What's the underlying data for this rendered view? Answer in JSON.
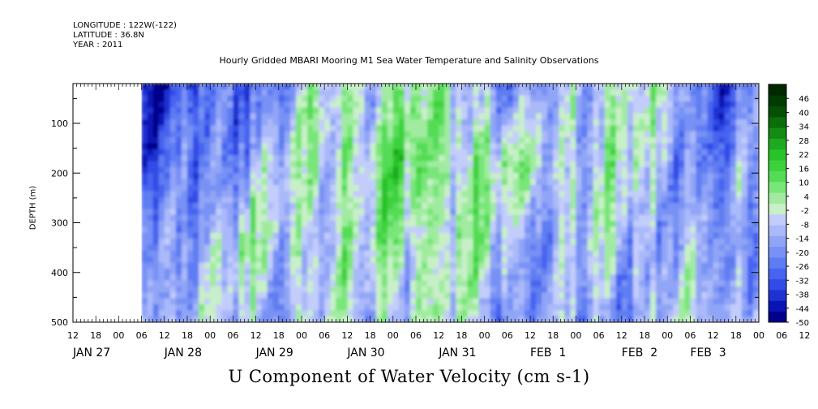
{
  "header": {
    "longitude": "LONGITUDE : 122W(-122)",
    "latitude": "LATITUDE : 36.8N",
    "year": "YEAR : 2011"
  },
  "chart_data": {
    "type": "heatmap",
    "title": "Hourly Gridded MBARI Mooring M1 Sea Water Temperature and Salinity Observations",
    "xlabel": "U Component of Water Velocity (cm s-1)",
    "ylabel": "DEPTH (m)",
    "y_range": [
      500,
      20
    ],
    "y_ticks": [
      "100",
      "200",
      "300",
      "400",
      "500"
    ],
    "y_tick_values": [
      100,
      200,
      300,
      400,
      500
    ],
    "x_range_hours": [
      -12,
      168
    ],
    "x_start_date": "JAN 27 12:00",
    "hour_ticks": [
      "12",
      "18",
      "00",
      "06",
      "12",
      "18",
      "00",
      "06",
      "12",
      "18",
      "00",
      "06",
      "12",
      "18",
      "00",
      "06",
      "12",
      "18",
      "00",
      "06",
      "12",
      "18",
      "00",
      "06",
      "12",
      "18",
      "00",
      "06",
      "12",
      "18",
      "00",
      "06",
      "12"
    ],
    "date_labels": [
      "JAN 27",
      "JAN 28",
      "JAN 29",
      "JAN 30",
      "JAN 31",
      "FEB  1",
      "FEB  2",
      "FEB  3"
    ],
    "date_label_hours": [
      -12,
      12,
      36,
      60,
      84,
      108,
      132,
      150
    ],
    "data_start_hour": 6,
    "colorbar": {
      "labels": [
        "46",
        "40",
        "34",
        "28",
        "22",
        "16",
        "10",
        "4",
        "-2",
        "-8",
        "-14",
        "-20",
        "-26",
        "-32",
        "-38",
        "-44",
        "-50"
      ],
      "range": [
        -50,
        52
      ],
      "step": 6,
      "colors": [
        "#00008c",
        "#0a14b4",
        "#1e32d2",
        "#324be6",
        "#4664f0",
        "#5f7df2",
        "#7891f5",
        "#91a5f7",
        "#aab9f9",
        "#c3cdfb",
        "#c8f0c8",
        "#a0eba0",
        "#78e678",
        "#55dc55",
        "#3cd23c",
        "#28c328",
        "#1eaa1e",
        "#148c14",
        "#0a6e0a",
        "#055005",
        "#003c00",
        "#002800"
      ]
    },
    "profile_samples": [
      {
        "hour": 6,
        "u": [
          -35,
          -30,
          -10,
          5
        ]
      },
      {
        "hour": 30,
        "u": [
          -20,
          -5,
          10,
          0
        ]
      },
      {
        "hour": 60,
        "u": [
          15,
          20,
          10,
          5
        ]
      },
      {
        "hour": 84,
        "u": [
          15,
          25,
          20,
          10
        ]
      },
      {
        "hour": 108,
        "u": [
          -15,
          10,
          -5,
          -10
        ]
      },
      {
        "hour": 132,
        "u": [
          20,
          10,
          5,
          -5
        ]
      },
      {
        "hour": 156,
        "u": [
          -20,
          -15,
          -10,
          5
        ]
      }
    ]
  }
}
